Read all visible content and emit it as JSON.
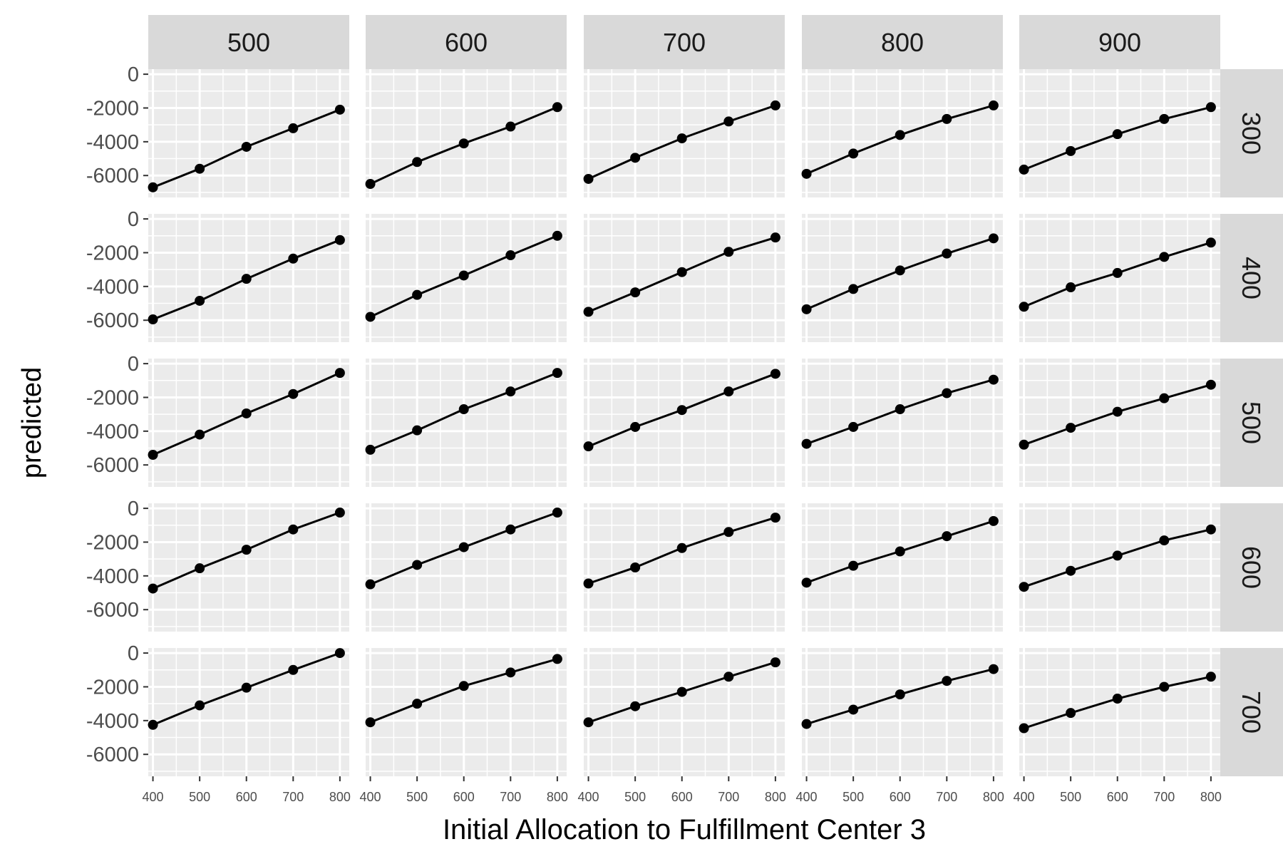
{
  "chart_data": {
    "type": "line",
    "facet_columns": [
      "500",
      "600",
      "700",
      "800",
      "900"
    ],
    "facet_rows": [
      "300",
      "400",
      "500",
      "600",
      "700"
    ],
    "x": [
      400,
      500,
      600,
      700,
      800
    ],
    "xticks": [
      "400",
      "500",
      "600",
      "700",
      "800"
    ],
    "yticks": [
      "0",
      "-2000",
      "-4000",
      "-6000"
    ],
    "ylim": [
      -7300,
      300
    ],
    "xlim": [
      390,
      820
    ],
    "xlabel": "Initial Allocation to Fulfillment Center 3",
    "ylabel": "predicted",
    "grid": true,
    "markers": true,
    "panels": [
      [
        {
          "col": "500",
          "row": "300",
          "y": [
            -6700,
            -5600,
            -4300,
            -3200,
            -2100
          ]
        },
        {
          "col": "600",
          "row": "300",
          "y": [
            -6500,
            -5200,
            -4100,
            -3100,
            -1950
          ]
        },
        {
          "col": "700",
          "row": "300",
          "y": [
            -6200,
            -4950,
            -3800,
            -2800,
            -1850
          ]
        },
        {
          "col": "800",
          "row": "300",
          "y": [
            -5900,
            -4700,
            -3600,
            -2650,
            -1850
          ]
        },
        {
          "col": "900",
          "row": "300",
          "y": [
            -5650,
            -4550,
            -3550,
            -2650,
            -1950
          ]
        }
      ],
      [
        {
          "col": "500",
          "row": "400",
          "y": [
            -5950,
            -4850,
            -3550,
            -2350,
            -1250
          ]
        },
        {
          "col": "600",
          "row": "400",
          "y": [
            -5800,
            -4500,
            -3350,
            -2150,
            -1000
          ]
        },
        {
          "col": "700",
          "row": "400",
          "y": [
            -5500,
            -4350,
            -3150,
            -1950,
            -1100
          ]
        },
        {
          "col": "800",
          "row": "400",
          "y": [
            -5350,
            -4150,
            -3050,
            -2050,
            -1150
          ]
        },
        {
          "col": "900",
          "row": "400",
          "y": [
            -5200,
            -4050,
            -3200,
            -2250,
            -1400
          ]
        }
      ],
      [
        {
          "col": "500",
          "row": "500",
          "y": [
            -5400,
            -4200,
            -2950,
            -1800,
            -550
          ]
        },
        {
          "col": "600",
          "row": "500",
          "y": [
            -5100,
            -3950,
            -2700,
            -1650,
            -550
          ]
        },
        {
          "col": "700",
          "row": "500",
          "y": [
            -4900,
            -3750,
            -2750,
            -1650,
            -600
          ]
        },
        {
          "col": "800",
          "row": "500",
          "y": [
            -4750,
            -3750,
            -2700,
            -1750,
            -950
          ]
        },
        {
          "col": "900",
          "row": "500",
          "y": [
            -4800,
            -3800,
            -2850,
            -2050,
            -1250
          ]
        }
      ],
      [
        {
          "col": "500",
          "row": "600",
          "y": [
            -4750,
            -3550,
            -2450,
            -1250,
            -250
          ]
        },
        {
          "col": "600",
          "row": "600",
          "y": [
            -4500,
            -3350,
            -2300,
            -1250,
            -250
          ]
        },
        {
          "col": "700",
          "row": "600",
          "y": [
            -4450,
            -3500,
            -2350,
            -1400,
            -550
          ]
        },
        {
          "col": "800",
          "row": "600",
          "y": [
            -4400,
            -3400,
            -2550,
            -1650,
            -750
          ]
        },
        {
          "col": "900",
          "row": "600",
          "y": [
            -4650,
            -3700,
            -2800,
            -1900,
            -1250
          ]
        }
      ],
      [
        {
          "col": "500",
          "row": "700",
          "y": [
            -4250,
            -3100,
            -2050,
            -1000,
            0
          ]
        },
        {
          "col": "600",
          "row": "700",
          "y": [
            -4100,
            -3000,
            -1950,
            -1150,
            -350
          ]
        },
        {
          "col": "700",
          "row": "700",
          "y": [
            -4100,
            -3150,
            -2300,
            -1400,
            -550
          ]
        },
        {
          "col": "800",
          "row": "700",
          "y": [
            -4200,
            -3350,
            -2450,
            -1650,
            -950
          ]
        },
        {
          "col": "900",
          "row": "700",
          "y": [
            -4450,
            -3550,
            -2700,
            -2000,
            -1400
          ]
        }
      ]
    ]
  }
}
